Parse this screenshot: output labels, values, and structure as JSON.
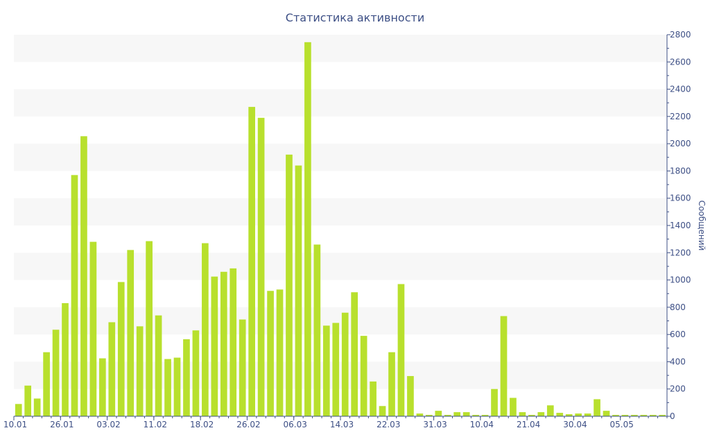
{
  "chart_data": {
    "type": "bar",
    "title": "Статистика активности",
    "ylabel": "Сообщений",
    "xlabel": "",
    "ylim": [
      0,
      2800
    ],
    "y_ticks": [
      0,
      200,
      400,
      600,
      800,
      1000,
      1200,
      1400,
      1600,
      1800,
      2000,
      2200,
      2400,
      2600,
      2800
    ],
    "y_axis_position": "right",
    "grid": "alternating horizontal bands",
    "x_tick_labels": [
      {
        "label": "10.01",
        "index": 0
      },
      {
        "label": "26.01",
        "index": 5
      },
      {
        "label": "03.02",
        "index": 10
      },
      {
        "label": "11.02",
        "index": 15
      },
      {
        "label": "18.02",
        "index": 20
      },
      {
        "label": "26.02",
        "index": 25
      },
      {
        "label": "06.03",
        "index": 30
      },
      {
        "label": "14.03",
        "index": 35
      },
      {
        "label": "22.03",
        "index": 40
      },
      {
        "label": "31.03",
        "index": 45
      },
      {
        "label": "10.04",
        "index": 50
      },
      {
        "label": "21.04",
        "index": 55
      },
      {
        "label": "30.04",
        "index": 60
      },
      {
        "label": "05.05",
        "index": 65
      }
    ],
    "values": [
      90,
      225,
      130,
      470,
      635,
      830,
      1770,
      2055,
      1280,
      425,
      690,
      985,
      1220,
      660,
      1285,
      740,
      420,
      430,
      565,
      630,
      1270,
      1025,
      1060,
      1085,
      710,
      2270,
      2190,
      920,
      930,
      1920,
      1840,
      2745,
      1260,
      665,
      685,
      760,
      910,
      590,
      255,
      75,
      470,
      970,
      295,
      20,
      10,
      40,
      10,
      30,
      30,
      10,
      10,
      200,
      735,
      135,
      30,
      10,
      30,
      80,
      25,
      15,
      20,
      20,
      125,
      40,
      10,
      10,
      10,
      10,
      10,
      10
    ],
    "colors": {
      "bar": "#b8e02d",
      "band": "#f7f7f7",
      "axis": "#3d4f85",
      "text": "#3d4f85"
    }
  }
}
